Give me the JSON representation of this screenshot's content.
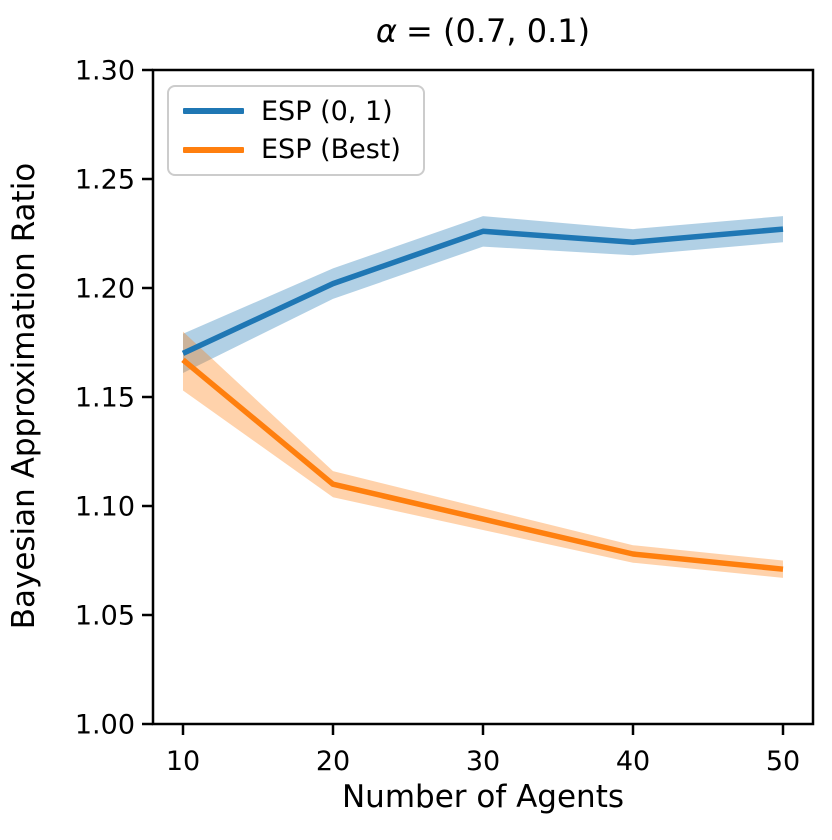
{
  "figure": {
    "title": {
      "symbol": "α",
      "rest": "= (0.7, 0.1)"
    },
    "xlabel": "Number of Agents",
    "ylabel": "Bayesian Approximation Ratio"
  },
  "legend": {
    "position": "upper left",
    "entries": [
      {
        "label": "ESP (0, 1)",
        "color": "#1f77b4"
      },
      {
        "label": "ESP (Best)",
        "color": "#ff7f0e"
      }
    ]
  },
  "chart_data": {
    "type": "line",
    "title": "α = (0.7, 0.1)",
    "xlabel": "Number of Agents",
    "ylabel": "Bayesian Approximation Ratio",
    "x": [
      10,
      20,
      30,
      40,
      50
    ],
    "series": [
      {
        "name": "ESP (0, 1)",
        "color": "#1f77b4",
        "values": [
          1.17,
          1.202,
          1.226,
          1.221,
          1.227
        ],
        "band_lower": [
          1.161,
          1.195,
          1.219,
          1.215,
          1.221
        ],
        "band_upper": [
          1.179,
          1.209,
          1.233,
          1.227,
          1.233
        ]
      },
      {
        "name": "ESP (Best)",
        "color": "#ff7f0e",
        "values": [
          1.167,
          1.11,
          1.094,
          1.078,
          1.071
        ],
        "band_lower": [
          1.153,
          1.104,
          1.089,
          1.074,
          1.067
        ],
        "band_upper": [
          1.18,
          1.116,
          1.099,
          1.082,
          1.075
        ]
      }
    ],
    "band_opacity": 0.35,
    "xlim": [
      8,
      52
    ],
    "ylim": [
      1.0,
      1.3
    ],
    "xtick_labels": [
      "10",
      "20",
      "30",
      "40",
      "50"
    ],
    "ytick_labels": [
      "1.00",
      "1.05",
      "1.10",
      "1.15",
      "1.20",
      "1.25",
      "1.30"
    ],
    "grid": false,
    "legend_position": "upper left",
    "axis_color": "#000000",
    "line_width": 5.5
  }
}
